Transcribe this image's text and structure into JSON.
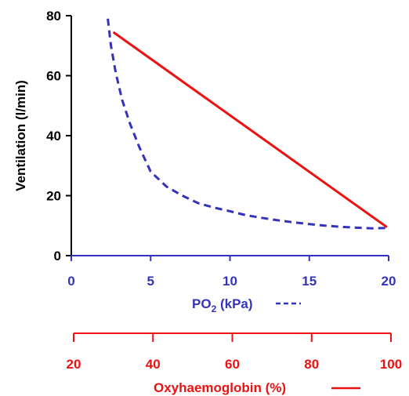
{
  "chart_data": {
    "type": "line",
    "ylabel": "Ventilation  (l/min)",
    "ylim": [
      0,
      80
    ],
    "yticks": [
      "0",
      "20",
      "40",
      "60",
      "80"
    ],
    "x_axes": [
      {
        "label_main": "PO",
        "label_sub": "2",
        "label_rest": " (kPa)",
        "line_style_key": "dashed",
        "color": "#3333bb",
        "xlim": [
          0,
          20
        ],
        "ticks": [
          "0",
          "5",
          "10",
          "15",
          "20"
        ]
      },
      {
        "label_main": "Oxyhaemoglobin  (%)",
        "line_style_key": "solid",
        "color": "#ee1111",
        "xlim": [
          20,
          100
        ],
        "ticks": [
          "20",
          "40",
          "60",
          "80",
          "100"
        ]
      }
    ],
    "series": [
      {
        "axis": 0,
        "style": "dashed",
        "color": "#3333bb",
        "points": [
          [
            2.3,
            79
          ],
          [
            2.5,
            70
          ],
          [
            2.8,
            61
          ],
          [
            3.2,
            52
          ],
          [
            3.7,
            44
          ],
          [
            4.3,
            36
          ],
          [
            5.0,
            28
          ],
          [
            6.0,
            23
          ],
          [
            7.0,
            20
          ],
          [
            8.0,
            17.5
          ],
          [
            9.0,
            16
          ],
          [
            10.0,
            14.8
          ],
          [
            11.0,
            13.5
          ],
          [
            12.0,
            12.6
          ],
          [
            13.0,
            11.8
          ],
          [
            14.0,
            11.1
          ],
          [
            15.0,
            10.5
          ],
          [
            16.0,
            10.0
          ],
          [
            17.0,
            9.6
          ],
          [
            18.0,
            9.3
          ],
          [
            19.0,
            9.1
          ],
          [
            19.8,
            9.2
          ]
        ]
      },
      {
        "axis": 1,
        "style": "solid",
        "color": "#ee1111",
        "points": [
          [
            30,
            74.5
          ],
          [
            99,
            9.5
          ]
        ]
      }
    ]
  }
}
